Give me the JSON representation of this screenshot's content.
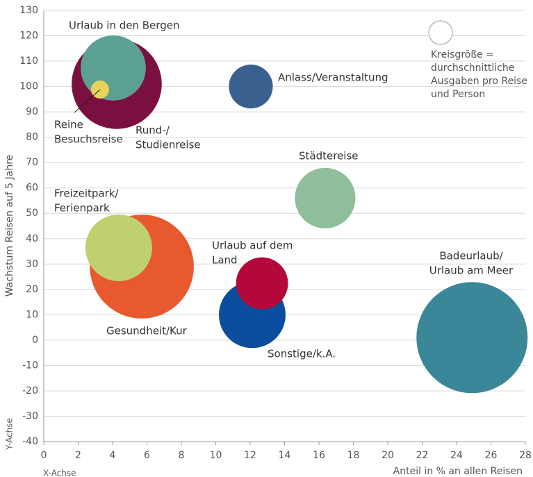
{
  "chart_data": {
    "type": "bubble",
    "x_label": "Anteil in % an allen Reisen",
    "y_label": "Wachstum Reisen auf 5 Jahre",
    "x_axis_name": "X-Achse",
    "y_axis_name": "Y-Achse",
    "legend_text": [
      "Kreisgröße =",
      "durchschnittliche",
      "Ausgaben pro Reise",
      "und Person"
    ],
    "xlim": [
      0,
      28
    ],
    "xticks": [
      0,
      2,
      4,
      6,
      8,
      10,
      12,
      14,
      16,
      18,
      20,
      22,
      24,
      26,
      28
    ],
    "ylim": [
      -40,
      130
    ],
    "yticks": [
      -40,
      -30,
      -20,
      -10,
      0,
      10,
      20,
      30,
      40,
      50,
      60,
      70,
      80,
      90,
      100,
      110,
      120,
      130
    ],
    "grid": true,
    "labels": [
      [
        "Rund-/",
        "Studienreise"
      ],
      [
        "Urlaub in den Bergen"
      ],
      [
        "Reine",
        "Besuchsreise"
      ],
      [
        "Anlass/Veranstaltung"
      ],
      [
        "Städtereise"
      ],
      [
        "Gesundheit/Kur"
      ],
      [
        "Freizeitpark/",
        "Ferienpark"
      ],
      [
        "Sonstige/k.A."
      ],
      [
        "Urlaub auf dem",
        "Land"
      ],
      [
        "Badeurlaub/",
        "Urlaub am Meer"
      ]
    ],
    "x": [
      4.24,
      4.04,
      3.27,
      12.04,
      16.36,
      5.7,
      4.36,
      12.12,
      12.69,
      24.9
    ],
    "values": [
      101,
      107.3,
      98.8,
      100,
      56,
      29,
      36.4,
      10,
      22.4,
      1
    ],
    "sizes": [
      42,
      22,
      1.7,
      10,
      19,
      56,
      23,
      23,
      14,
      64
    ],
    "colors": [
      "#7a1040",
      "#5aa193",
      "#e8d35a",
      "#3a6090",
      "#8fbf9a",
      "#e85a2e",
      "#bfd06f",
      "#0a4d9e",
      "#b5083a",
      "#3a8799"
    ]
  }
}
